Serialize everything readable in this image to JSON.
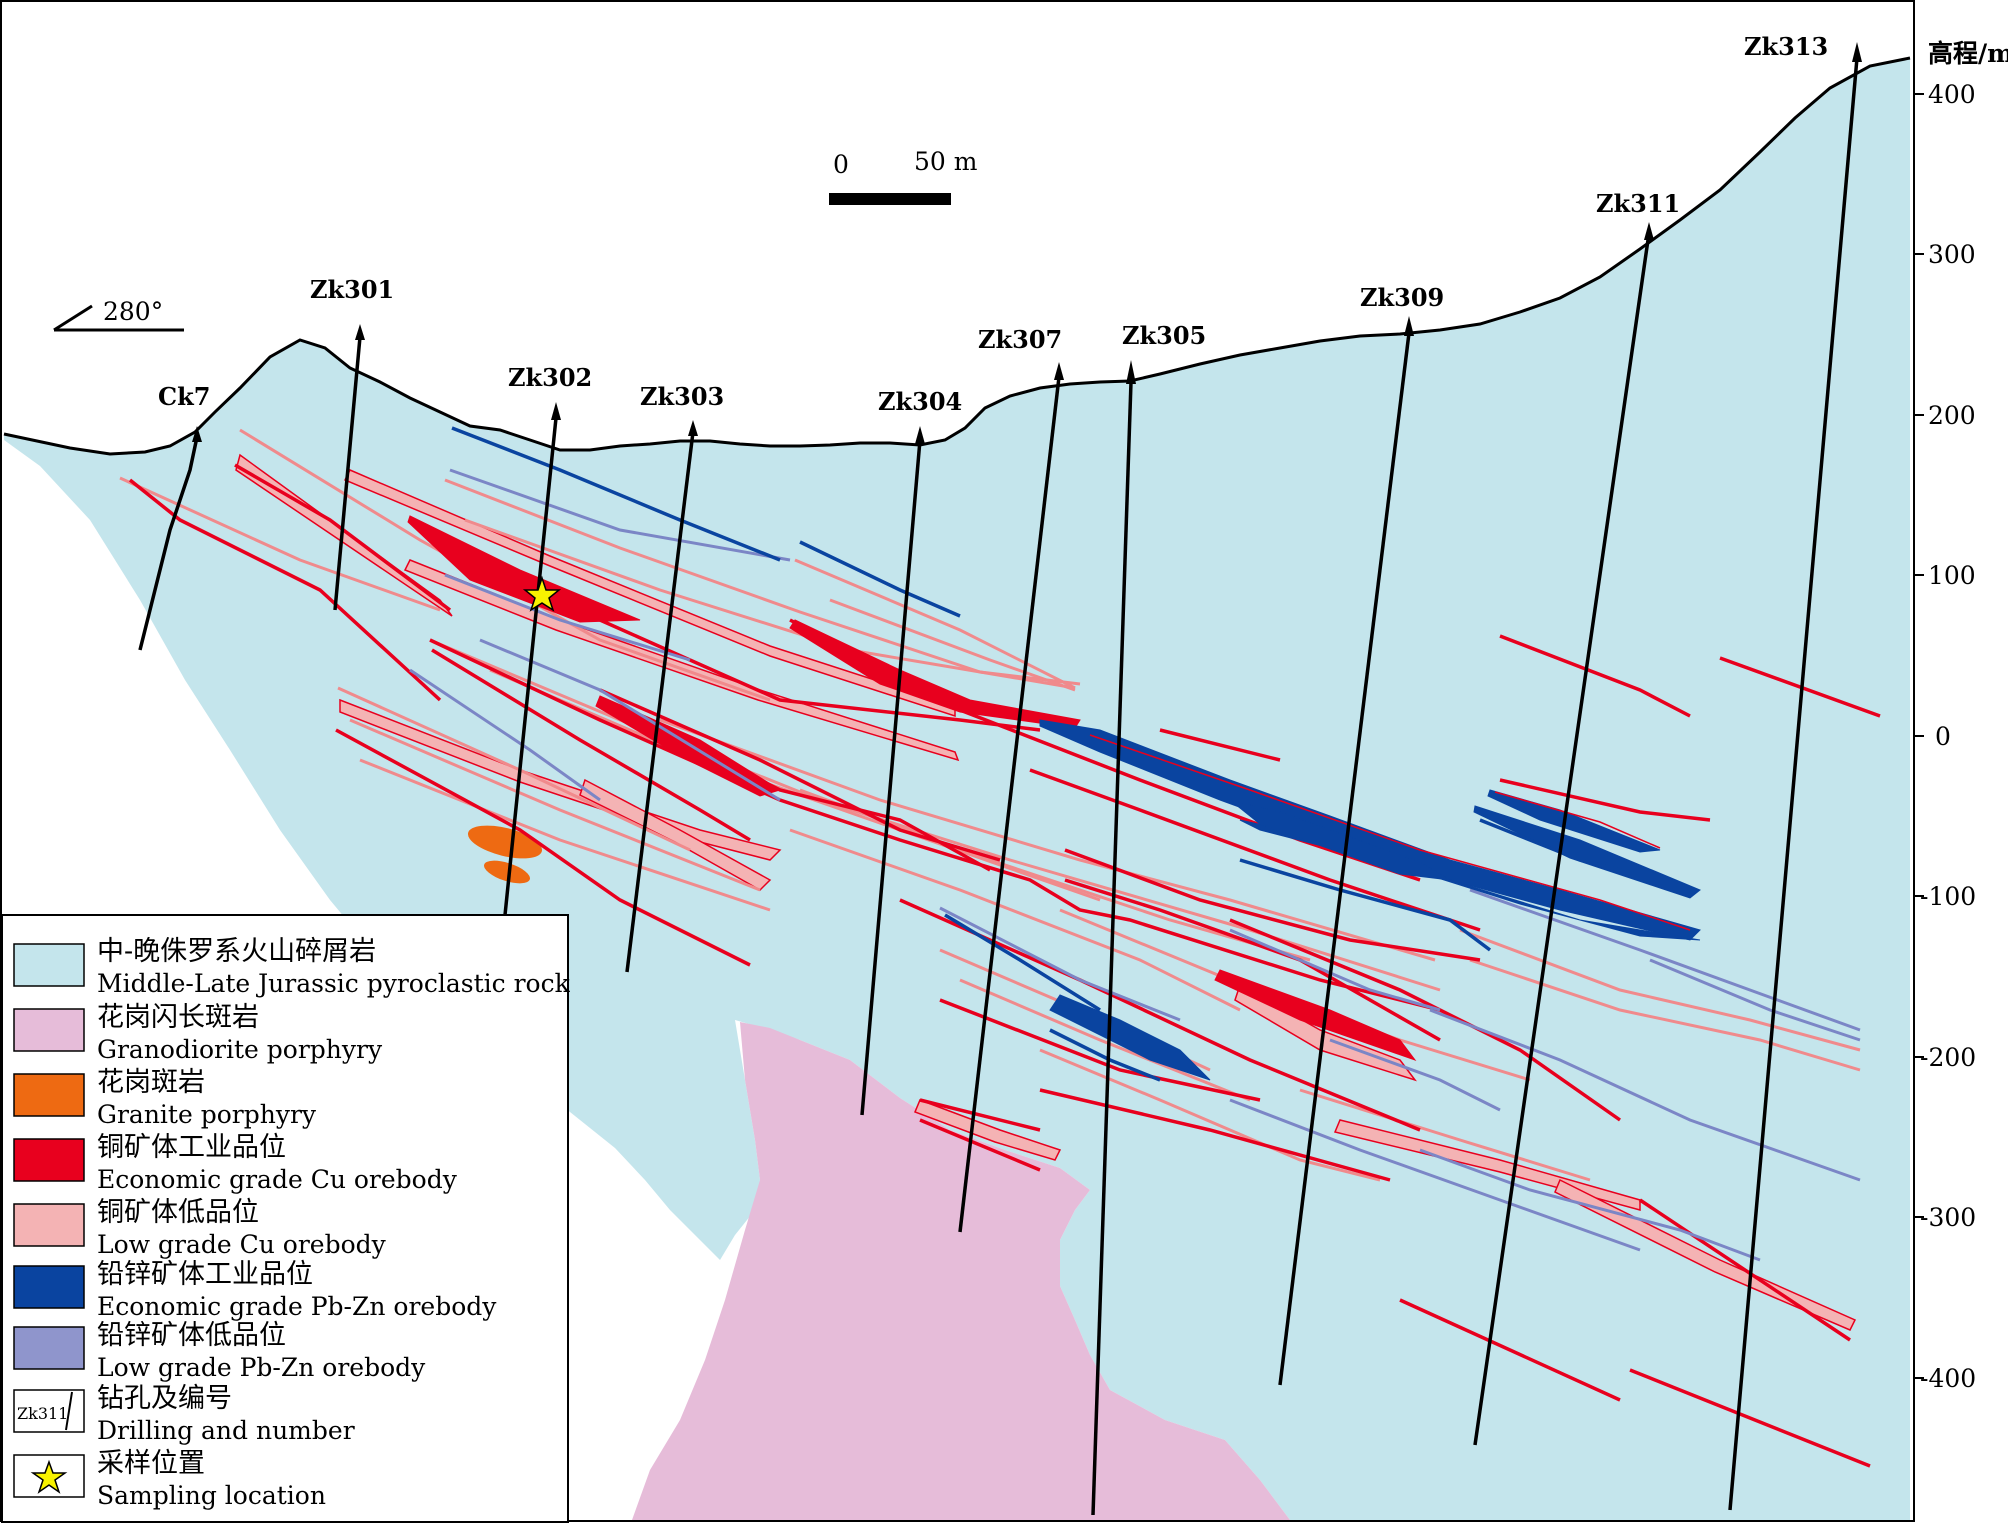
{
  "scale_bar": {
    "zero": "0",
    "length_label": "50 m"
  },
  "orientation": "280°",
  "elevation_axis": {
    "title": "高程/m",
    "ticks": [
      "400",
      "300",
      "200",
      "100",
      "0",
      "-100",
      "-200",
      "-300",
      "-400"
    ]
  },
  "drill_holes": [
    "Ck7",
    "Zk301",
    "Zk302",
    "Zk303",
    "Zk304",
    "Zk307",
    "Zk305",
    "Zk309",
    "Zk311",
    "Zk313"
  ],
  "legend": [
    {
      "zh": "中-晚侏罗系火山碎屑岩",
      "en": "Middle-Late Jurassic pyroclastic rock",
      "color": "#c4e5ec"
    },
    {
      "zh": "花岗闪长斑岩",
      "en": "Granodiorite porphyry",
      "color": "#e6bcd9"
    },
    {
      "zh": "花岗斑岩",
      "en": "Granite porphyry",
      "color": "#ee6a12"
    },
    {
      "zh": "铜矿体工业品位",
      "en": "Economic grade Cu orebody",
      "color": "#e8001e"
    },
    {
      "zh": "铜矿体低品位",
      "en": "Low grade Cu orebody",
      "color": "#f4b3b4"
    },
    {
      "zh": "铅锌矿体工业品位",
      "en": "Economic grade Pb-Zn orebody",
      "color": "#0a44a0"
    },
    {
      "zh": "铅锌矿体低品位",
      "en": "Low grade Pb-Zn orebody",
      "color": "#8f95cc"
    },
    {
      "zh": "钻孔及编号",
      "en": "Drilling and number",
      "icon_text": "Zk311"
    },
    {
      "zh": "采样位置",
      "en": "Sampling location",
      "icon": "star-icon",
      "color": "#f8f200"
    }
  ]
}
